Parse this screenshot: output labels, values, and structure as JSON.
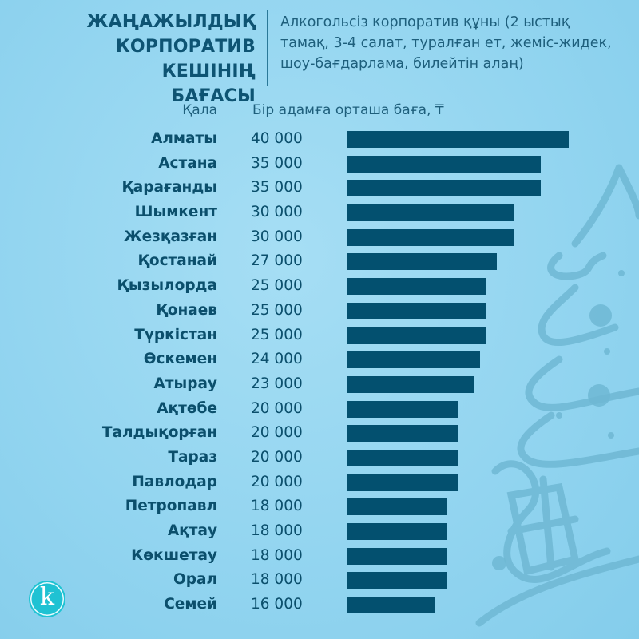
{
  "header": {
    "title_lines": [
      "ЖАҢАЖЫЛДЫҚ",
      "КОРПОРАТИВ КЕШІНІҢ",
      "БАҒАСЫ"
    ],
    "subtitle_lines": [
      "Алкогольсіз корпоратив құны (2 ыстық",
      "тамақ, 3-4 салат, туралған ет, жеміс-жидек,",
      "шоу-бағдарлама, билейтін алаң)"
    ]
  },
  "columns": {
    "city": "Қала",
    "price": "Бір адамға орташа баға, ₸"
  },
  "colors": {
    "background": "#93d5f0",
    "bar": "#03506f",
    "text": "#0b4f6c",
    "logo": "#1fc2d3"
  },
  "logo": {
    "letter": "k",
    "icon": "brand-logo-icon"
  },
  "chart_data": {
    "type": "bar",
    "orientation": "horizontal",
    "title": "ЖАҢАЖЫЛДЫҚ КОРПОРАТИВ КЕШІНІҢ БАҒАСЫ",
    "subtitle": "Алкогольсіз корпоратив құны (2 ыстық тамақ, 3-4 салат, туралған ет, жеміс-жидек, шоу-бағдарлама, билейтін алаң)",
    "xlabel": "Бір адамға орташа баға, ₸",
    "ylabel": "Қала",
    "categories": [
      "Алматы",
      "Астана",
      "Қарағанды",
      "Шымкент",
      "Жезқазған",
      "Қостанай",
      "Қызылорда",
      "Қонаев",
      "Түркістан",
      "Өскемен",
      "Атырау",
      "Ақтөбе",
      "Талдықорған",
      "Тараз",
      "Павлодар",
      "Петропавл",
      "Ақтау",
      "Көкшетау",
      "Орал",
      "Семей"
    ],
    "values": [
      40000,
      35000,
      35000,
      30000,
      30000,
      27000,
      25000,
      25000,
      25000,
      24000,
      23000,
      20000,
      20000,
      20000,
      20000,
      18000,
      18000,
      18000,
      18000,
      16000
    ],
    "value_labels": [
      "40 000",
      "35 000",
      "35 000",
      "30 000",
      "30 000",
      "27 000",
      "25 000",
      "25 000",
      "25 000",
      "24 000",
      "23 000",
      "20 000",
      "20 000",
      "20 000",
      "20 000",
      "18 000",
      "18 000",
      "18 000",
      "18 000",
      "16 000"
    ],
    "xlim": [
      0,
      40000
    ],
    "grid": false,
    "legend": false
  }
}
